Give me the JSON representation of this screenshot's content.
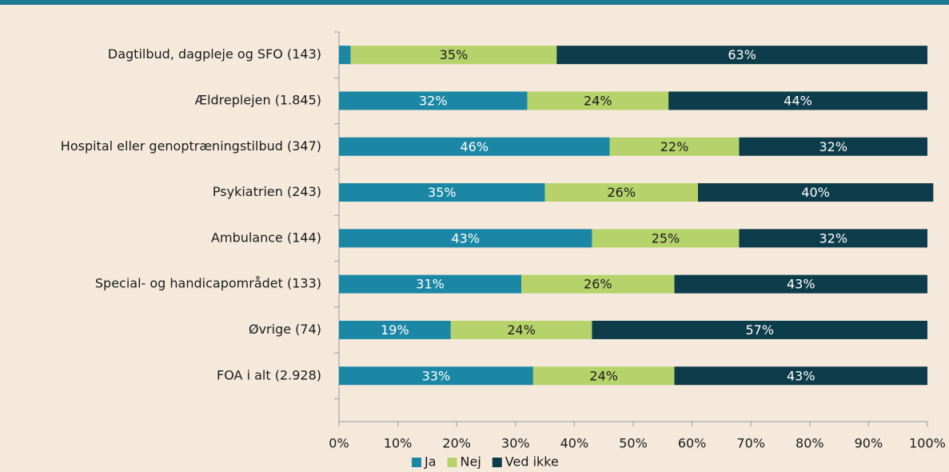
{
  "chart_data": {
    "type": "stacked-barh",
    "categories": [
      "Dagtilbud, dagpleje og SFO (143)",
      "Ældreplejen (1.845)",
      "Hospital eller genoptræningstilbud (347)",
      "Psykiatrien (243)",
      "Ambulance (144)",
      "Special- og handicapområdet (133)",
      "Øvrige (74)",
      "FOA i alt (2.928)"
    ],
    "series": [
      {
        "name": "Ja",
        "color": "#1b87a5",
        "label_color": "#ffffff",
        "values": [
          2,
          32,
          46,
          35,
          43,
          31,
          19,
          33
        ],
        "value_labels": [
          null,
          "32%",
          "46%",
          "35%",
          "43%",
          "31%",
          "19%",
          "33%"
        ]
      },
      {
        "name": "Nej",
        "color": "#b6d36b",
        "label_color": "#1a1a1a",
        "values": [
          35,
          24,
          22,
          26,
          25,
          26,
          24,
          24
        ],
        "value_labels": [
          "35%",
          "24%",
          "22%",
          "26%",
          "25%",
          "26%",
          "24%",
          "24%"
        ]
      },
      {
        "name": "Ved ikke",
        "color": "#0d3c4b",
        "label_color": "#ffffff",
        "values": [
          63,
          44,
          32,
          40,
          32,
          43,
          57,
          43
        ],
        "value_labels": [
          "63%",
          "44%",
          "32%",
          "40%",
          "32%",
          "43%",
          "57%",
          "43%"
        ]
      }
    ],
    "xlim": [
      0,
      100
    ],
    "xticks": [
      {
        "value": 0,
        "label": "0%"
      },
      {
        "value": 10,
        "label": "10%"
      },
      {
        "value": 20,
        "label": "20%"
      },
      {
        "value": 30,
        "label": "30%"
      },
      {
        "value": 40,
        "label": "40%"
      },
      {
        "value": 50,
        "label": "50%"
      },
      {
        "value": 60,
        "label": "60%"
      },
      {
        "value": 70,
        "label": "70%"
      },
      {
        "value": 80,
        "label": "80%"
      },
      {
        "value": 90,
        "label": "90%"
      },
      {
        "value": 100,
        "label": "100%"
      }
    ],
    "grid": false,
    "legend": "bottom"
  }
}
